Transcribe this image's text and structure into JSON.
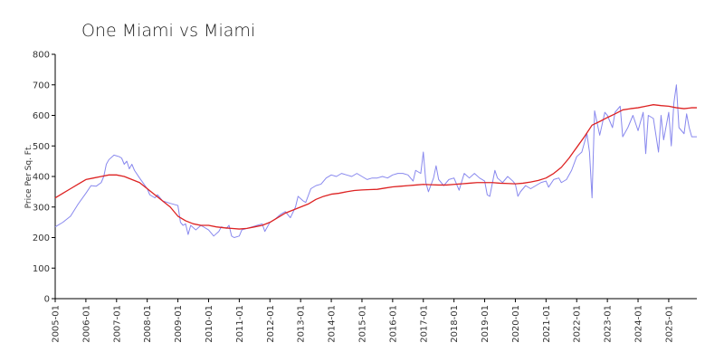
{
  "chart_data": {
    "type": "line",
    "title": "One Miami vs Miami",
    "xlabel": "",
    "ylabel": "Price Per Sq. Ft.",
    "ylim": [
      0,
      800
    ],
    "yticks": [
      0,
      100,
      200,
      300,
      400,
      500,
      600,
      700,
      800
    ],
    "x_tick_labels": [
      "2005-01",
      "2006-01",
      "2007-01",
      "2008-01",
      "2009-01",
      "2010-01",
      "2011-01",
      "2012-01",
      "2013-01",
      "2014-01",
      "2015-01",
      "2016-01",
      "2017-01",
      "2018-01",
      "2019-01",
      "2020-01",
      "2021-01",
      "2022-01",
      "2023-01",
      "2024-01",
      "2025-01"
    ],
    "xlim": [
      "2005-01",
      "2025-12"
    ],
    "grid": false,
    "legend": "none",
    "series": [
      {
        "color": "#8888ee",
        "points": [
          [
            "2005-01",
            235
          ],
          [
            "2005-04",
            250
          ],
          [
            "2005-07",
            270
          ],
          [
            "2005-10",
            310
          ],
          [
            "2006-01",
            345
          ],
          [
            "2006-03",
            370
          ],
          [
            "2006-05",
            368
          ],
          [
            "2006-07",
            380
          ],
          [
            "2006-08",
            400
          ],
          [
            "2006-09",
            440
          ],
          [
            "2006-10",
            455
          ],
          [
            "2006-12",
            470
          ],
          [
            "2007-02",
            465
          ],
          [
            "2007-03",
            460
          ],
          [
            "2007-04",
            440
          ],
          [
            "2007-05",
            450
          ],
          [
            "2007-06",
            425
          ],
          [
            "2007-07",
            440
          ],
          [
            "2007-08",
            420
          ],
          [
            "2007-10",
            395
          ],
          [
            "2008-01",
            360
          ],
          [
            "2008-02",
            340
          ],
          [
            "2008-04",
            330
          ],
          [
            "2008-05",
            340
          ],
          [
            "2008-07",
            320
          ],
          [
            "2008-10",
            312
          ],
          [
            "2009-01",
            305
          ],
          [
            "2009-02",
            250
          ],
          [
            "2009-03",
            240
          ],
          [
            "2009-04",
            245
          ],
          [
            "2009-05",
            210
          ],
          [
            "2009-06",
            240
          ],
          [
            "2009-08",
            225
          ],
          [
            "2009-10",
            240
          ],
          [
            "2010-01",
            225
          ],
          [
            "2010-03",
            205
          ],
          [
            "2010-05",
            220
          ],
          [
            "2010-06",
            235
          ],
          [
            "2010-08",
            230
          ],
          [
            "2010-09",
            240
          ],
          [
            "2010-10",
            205
          ],
          [
            "2010-11",
            200
          ],
          [
            "2011-01",
            205
          ],
          [
            "2011-02",
            225
          ],
          [
            "2011-04",
            230
          ],
          [
            "2011-06",
            235
          ],
          [
            "2011-08",
            240
          ],
          [
            "2011-10",
            245
          ],
          [
            "2011-11",
            220
          ],
          [
            "2012-01",
            250
          ],
          [
            "2012-03",
            260
          ],
          [
            "2012-05",
            275
          ],
          [
            "2012-07",
            285
          ],
          [
            "2012-09",
            265
          ],
          [
            "2012-11",
            300
          ],
          [
            "2012-12",
            335
          ],
          [
            "2013-02",
            320
          ],
          [
            "2013-03",
            315
          ],
          [
            "2013-05",
            360
          ],
          [
            "2013-07",
            370
          ],
          [
            "2013-09",
            375
          ],
          [
            "2013-11",
            395
          ],
          [
            "2014-01",
            405
          ],
          [
            "2014-03",
            400
          ],
          [
            "2014-05",
            410
          ],
          [
            "2014-07",
            405
          ],
          [
            "2014-09",
            400
          ],
          [
            "2014-11",
            410
          ],
          [
            "2015-01",
            400
          ],
          [
            "2015-03",
            390
          ],
          [
            "2015-05",
            395
          ],
          [
            "2015-07",
            395
          ],
          [
            "2015-09",
            400
          ],
          [
            "2015-11",
            395
          ],
          [
            "2016-01",
            405
          ],
          [
            "2016-03",
            410
          ],
          [
            "2016-05",
            410
          ],
          [
            "2016-07",
            405
          ],
          [
            "2016-09",
            385
          ],
          [
            "2016-10",
            420
          ],
          [
            "2016-12",
            410
          ],
          [
            "2017-01",
            480
          ],
          [
            "2017-02",
            380
          ],
          [
            "2017-03",
            350
          ],
          [
            "2017-05",
            395
          ],
          [
            "2017-06",
            435
          ],
          [
            "2017-07",
            390
          ],
          [
            "2017-09",
            370
          ],
          [
            "2017-11",
            390
          ],
          [
            "2018-01",
            395
          ],
          [
            "2018-03",
            355
          ],
          [
            "2018-05",
            410
          ],
          [
            "2018-07",
            395
          ],
          [
            "2018-09",
            410
          ],
          [
            "2018-11",
            395
          ],
          [
            "2019-01",
            385
          ],
          [
            "2019-02",
            340
          ],
          [
            "2019-03",
            335
          ],
          [
            "2019-05",
            420
          ],
          [
            "2019-06",
            395
          ],
          [
            "2019-08",
            380
          ],
          [
            "2019-10",
            400
          ],
          [
            "2019-12",
            385
          ],
          [
            "2020-01",
            375
          ],
          [
            "2020-02",
            335
          ],
          [
            "2020-03",
            350
          ],
          [
            "2020-05",
            370
          ],
          [
            "2020-07",
            360
          ],
          [
            "2020-09",
            370
          ],
          [
            "2020-11",
            380
          ],
          [
            "2021-01",
            385
          ],
          [
            "2021-02",
            365
          ],
          [
            "2021-04",
            390
          ],
          [
            "2021-06",
            395
          ],
          [
            "2021-07",
            380
          ],
          [
            "2021-09",
            390
          ],
          [
            "2021-11",
            420
          ],
          [
            "2022-01",
            465
          ],
          [
            "2022-03",
            480
          ],
          [
            "2022-05",
            540
          ],
          [
            "2022-06",
            480
          ],
          [
            "2022-07",
            330
          ],
          [
            "2022-08",
            615
          ],
          [
            "2022-10",
            535
          ],
          [
            "2022-12",
            610
          ],
          [
            "2023-01",
            600
          ],
          [
            "2023-03",
            560
          ],
          [
            "2023-04",
            610
          ],
          [
            "2023-05",
            620
          ],
          [
            "2023-06",
            630
          ],
          [
            "2023-07",
            530
          ],
          [
            "2023-09",
            560
          ],
          [
            "2023-11",
            600
          ],
          [
            "2024-01",
            550
          ],
          [
            "2024-03",
            610
          ],
          [
            "2024-04",
            475
          ],
          [
            "2024-05",
            600
          ],
          [
            "2024-07",
            590
          ],
          [
            "2024-09",
            480
          ],
          [
            "2024-10",
            600
          ],
          [
            "2024-11",
            520
          ],
          [
            "2025-01",
            610
          ],
          [
            "2025-02",
            500
          ],
          [
            "2025-03",
            640
          ],
          [
            "2025-04",
            700
          ],
          [
            "2025-05",
            560
          ],
          [
            "2025-07",
            540
          ],
          [
            "2025-08",
            605
          ],
          [
            "2025-09",
            560
          ],
          [
            "2025-10",
            530
          ],
          [
            "2025-12",
            530
          ]
        ]
      },
      {
        "color": "#dd2222",
        "points": [
          [
            "2005-01",
            330
          ],
          [
            "2005-04",
            345
          ],
          [
            "2005-07",
            360
          ],
          [
            "2005-10",
            375
          ],
          [
            "2006-01",
            390
          ],
          [
            "2006-04",
            395
          ],
          [
            "2006-07",
            400
          ],
          [
            "2006-10",
            405
          ],
          [
            "2007-01",
            405
          ],
          [
            "2007-04",
            400
          ],
          [
            "2007-07",
            390
          ],
          [
            "2007-10",
            380
          ],
          [
            "2008-01",
            360
          ],
          [
            "2008-04",
            340
          ],
          [
            "2008-07",
            320
          ],
          [
            "2008-10",
            300
          ],
          [
            "2009-01",
            270
          ],
          [
            "2009-04",
            255
          ],
          [
            "2009-07",
            245
          ],
          [
            "2009-10",
            240
          ],
          [
            "2010-01",
            240
          ],
          [
            "2010-04",
            235
          ],
          [
            "2010-07",
            232
          ],
          [
            "2010-10",
            230
          ],
          [
            "2011-01",
            228
          ],
          [
            "2011-04",
            230
          ],
          [
            "2011-07",
            235
          ],
          [
            "2011-10",
            240
          ],
          [
            "2012-01",
            250
          ],
          [
            "2012-04",
            265
          ],
          [
            "2012-07",
            280
          ],
          [
            "2012-10",
            290
          ],
          [
            "2013-01",
            300
          ],
          [
            "2013-04",
            310
          ],
          [
            "2013-07",
            325
          ],
          [
            "2013-10",
            335
          ],
          [
            "2014-01",
            342
          ],
          [
            "2014-04",
            345
          ],
          [
            "2014-07",
            350
          ],
          [
            "2014-10",
            354
          ],
          [
            "2015-01",
            356
          ],
          [
            "2015-04",
            357
          ],
          [
            "2015-07",
            358
          ],
          [
            "2015-10",
            362
          ],
          [
            "2016-01",
            366
          ],
          [
            "2016-04",
            368
          ],
          [
            "2016-07",
            370
          ],
          [
            "2016-10",
            372
          ],
          [
            "2017-01",
            374
          ],
          [
            "2017-04",
            373
          ],
          [
            "2017-07",
            372
          ],
          [
            "2017-10",
            372
          ],
          [
            "2018-01",
            374
          ],
          [
            "2018-04",
            376
          ],
          [
            "2018-07",
            378
          ],
          [
            "2018-10",
            380
          ],
          [
            "2019-01",
            380
          ],
          [
            "2019-04",
            380
          ],
          [
            "2019-07",
            378
          ],
          [
            "2019-10",
            377
          ],
          [
            "2020-01",
            376
          ],
          [
            "2020-04",
            378
          ],
          [
            "2020-07",
            382
          ],
          [
            "2020-10",
            387
          ],
          [
            "2021-01",
            395
          ],
          [
            "2021-04",
            410
          ],
          [
            "2021-07",
            430
          ],
          [
            "2021-10",
            460
          ],
          [
            "2022-01",
            495
          ],
          [
            "2022-04",
            530
          ],
          [
            "2022-07",
            568
          ],
          [
            "2022-10",
            580
          ],
          [
            "2023-01",
            593
          ],
          [
            "2023-04",
            605
          ],
          [
            "2023-07",
            618
          ],
          [
            "2023-10",
            622
          ],
          [
            "2024-01",
            625
          ],
          [
            "2024-04",
            630
          ],
          [
            "2024-07",
            635
          ],
          [
            "2024-10",
            632
          ],
          [
            "2025-01",
            630
          ],
          [
            "2025-04",
            625
          ],
          [
            "2025-07",
            622
          ],
          [
            "2025-10",
            625
          ],
          [
            "2025-12",
            625
          ]
        ]
      }
    ]
  }
}
